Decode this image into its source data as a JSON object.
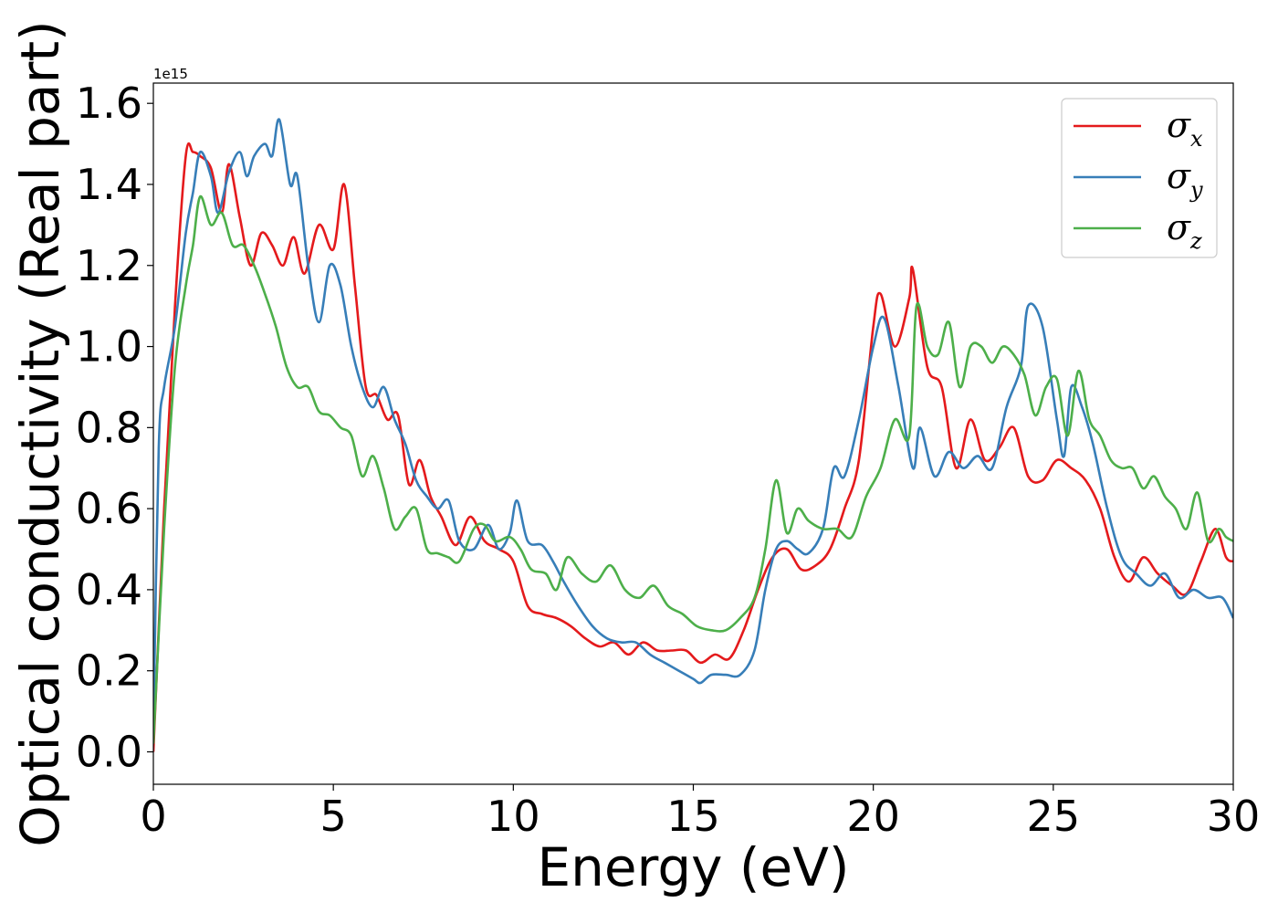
{
  "chart_data": {
    "type": "line",
    "xlabel": "Energy (eV)",
    "ylabel": "Optical conductivity (Real part)",
    "y_offset_text": "1e15",
    "xlim": [
      0,
      30
    ],
    "ylim": [
      -0.08,
      1.65
    ],
    "xticks": [
      0,
      5,
      10,
      15,
      20,
      25,
      30
    ],
    "yticks": [
      0.0,
      0.2,
      0.4,
      0.6,
      0.8,
      1.0,
      1.2,
      1.4,
      1.6
    ],
    "ytick_labels": [
      "0.0",
      "0.2",
      "0.4",
      "0.6",
      "0.8",
      "1.0",
      "1.2",
      "1.4",
      "1.6"
    ],
    "grid": false,
    "legend_position": "top-right",
    "series": [
      {
        "name": "σx",
        "sub": "x",
        "color": "#e41a1c",
        "x": [
          0,
          0.3,
          0.6,
          0.9,
          1.1,
          1.3,
          1.6,
          1.9,
          2.1,
          2.4,
          2.7,
          3.0,
          3.3,
          3.6,
          3.9,
          4.2,
          4.6,
          5.0,
          5.3,
          5.6,
          5.9,
          6.2,
          6.5,
          6.8,
          7.1,
          7.4,
          7.7,
          8.0,
          8.4,
          8.8,
          9.2,
          9.6,
          10.0,
          10.4,
          10.8,
          11.2,
          11.6,
          12.0,
          12.4,
          12.8,
          13.2,
          13.6,
          14.0,
          14.4,
          14.8,
          15.2,
          15.6,
          16.0,
          16.4,
          16.8,
          17.2,
          17.6,
          18.0,
          18.4,
          18.8,
          19.2,
          19.6,
          20.0,
          20.2,
          20.6,
          21.0,
          21.1,
          21.5,
          21.9,
          22.3,
          22.7,
          23.1,
          23.5,
          23.9,
          24.3,
          24.7,
          25.1,
          25.5,
          25.9,
          26.3,
          26.7,
          27.1,
          27.5,
          27.9,
          28.3,
          28.7,
          29.1,
          29.5,
          29.8,
          30.0
        ],
        "y": [
          0.0,
          0.6,
          1.1,
          1.47,
          1.48,
          1.47,
          1.44,
          1.33,
          1.45,
          1.32,
          1.2,
          1.28,
          1.25,
          1.2,
          1.27,
          1.18,
          1.3,
          1.24,
          1.4,
          1.15,
          0.9,
          0.88,
          0.82,
          0.83,
          0.66,
          0.72,
          0.63,
          0.58,
          0.51,
          0.58,
          0.52,
          0.5,
          0.47,
          0.36,
          0.34,
          0.33,
          0.31,
          0.28,
          0.26,
          0.27,
          0.24,
          0.27,
          0.25,
          0.25,
          0.25,
          0.22,
          0.24,
          0.23,
          0.3,
          0.4,
          0.48,
          0.5,
          0.45,
          0.46,
          0.5,
          0.6,
          0.72,
          1.05,
          1.13,
          1.0,
          1.12,
          1.19,
          0.95,
          0.9,
          0.7,
          0.82,
          0.72,
          0.75,
          0.8,
          0.68,
          0.67,
          0.72,
          0.7,
          0.67,
          0.6,
          0.48,
          0.42,
          0.48,
          0.44,
          0.41,
          0.39,
          0.47,
          0.55,
          0.48,
          0.47
        ]
      },
      {
        "name": "σy",
        "sub": "y",
        "color": "#377eb8",
        "x": [
          0,
          0.15,
          0.3,
          0.6,
          0.9,
          1.1,
          1.3,
          1.6,
          1.8,
          2.1,
          2.4,
          2.6,
          2.8,
          3.1,
          3.3,
          3.5,
          3.8,
          4.0,
          4.3,
          4.6,
          4.9,
          5.2,
          5.5,
          5.8,
          6.1,
          6.4,
          6.7,
          7.0,
          7.3,
          7.6,
          7.9,
          8.2,
          8.5,
          8.9,
          9.3,
          9.6,
          9.9,
          10.1,
          10.4,
          10.8,
          11.1,
          11.4,
          11.8,
          12.2,
          12.6,
          13.0,
          13.4,
          13.8,
          14.2,
          14.6,
          15.0,
          15.2,
          15.5,
          15.9,
          16.3,
          16.7,
          17.0,
          17.3,
          17.6,
          17.9,
          18.2,
          18.6,
          18.9,
          19.2,
          19.6,
          20.0,
          20.3,
          20.7,
          21.1,
          21.3,
          21.7,
          22.1,
          22.5,
          22.9,
          23.3,
          23.7,
          24.1,
          24.3,
          24.7,
          25.1,
          25.3,
          25.5,
          25.8,
          26.1,
          26.5,
          26.9,
          27.3,
          27.7,
          28.1,
          28.5,
          28.9,
          29.3,
          29.7,
          30.0
        ],
        "y": [
          0.05,
          0.75,
          0.9,
          1.05,
          1.28,
          1.38,
          1.48,
          1.42,
          1.33,
          1.43,
          1.48,
          1.42,
          1.47,
          1.5,
          1.47,
          1.56,
          1.4,
          1.42,
          1.2,
          1.06,
          1.2,
          1.15,
          1.0,
          0.9,
          0.85,
          0.9,
          0.82,
          0.76,
          0.67,
          0.63,
          0.6,
          0.62,
          0.52,
          0.5,
          0.56,
          0.5,
          0.54,
          0.62,
          0.52,
          0.51,
          0.47,
          0.42,
          0.36,
          0.31,
          0.28,
          0.27,
          0.27,
          0.24,
          0.22,
          0.2,
          0.18,
          0.17,
          0.19,
          0.19,
          0.19,
          0.25,
          0.4,
          0.5,
          0.52,
          0.5,
          0.49,
          0.55,
          0.7,
          0.68,
          0.82,
          1.0,
          1.07,
          0.9,
          0.7,
          0.8,
          0.68,
          0.74,
          0.7,
          0.73,
          0.7,
          0.85,
          0.95,
          1.1,
          1.05,
          0.82,
          0.73,
          0.9,
          0.85,
          0.76,
          0.6,
          0.48,
          0.44,
          0.41,
          0.44,
          0.38,
          0.4,
          0.38,
          0.38,
          0.33
        ]
      },
      {
        "name": "σz",
        "sub": "z",
        "color": "#4daf4a",
        "x": [
          0,
          0.3,
          0.6,
          0.9,
          1.1,
          1.3,
          1.6,
          1.9,
          2.2,
          2.5,
          2.8,
          3.1,
          3.4,
          3.7,
          4.0,
          4.3,
          4.6,
          4.9,
          5.2,
          5.5,
          5.8,
          6.1,
          6.4,
          6.7,
          7.0,
          7.3,
          7.6,
          7.9,
          8.2,
          8.5,
          8.9,
          9.2,
          9.5,
          9.9,
          10.2,
          10.5,
          10.9,
          11.2,
          11.5,
          11.9,
          12.3,
          12.7,
          13.1,
          13.5,
          13.9,
          14.3,
          14.7,
          15.1,
          15.5,
          15.9,
          16.3,
          16.7,
          17.0,
          17.3,
          17.6,
          17.9,
          18.2,
          18.6,
          19.0,
          19.4,
          19.8,
          20.2,
          20.6,
          21.0,
          21.2,
          21.5,
          21.8,
          22.1,
          22.4,
          22.7,
          23.0,
          23.3,
          23.6,
          23.9,
          24.2,
          24.5,
          24.8,
          25.1,
          25.4,
          25.7,
          26.0,
          26.3,
          26.6,
          26.9,
          27.2,
          27.5,
          27.8,
          28.1,
          28.4,
          28.7,
          29.0,
          29.3,
          29.6,
          29.8,
          30.0
        ],
        "y": [
          0.02,
          0.55,
          0.95,
          1.15,
          1.25,
          1.37,
          1.3,
          1.33,
          1.25,
          1.25,
          1.2,
          1.13,
          1.05,
          0.95,
          0.9,
          0.9,
          0.84,
          0.83,
          0.8,
          0.78,
          0.68,
          0.73,
          0.65,
          0.55,
          0.58,
          0.6,
          0.5,
          0.49,
          0.48,
          0.47,
          0.55,
          0.56,
          0.52,
          0.53,
          0.5,
          0.45,
          0.44,
          0.4,
          0.48,
          0.44,
          0.42,
          0.46,
          0.4,
          0.38,
          0.41,
          0.36,
          0.34,
          0.31,
          0.3,
          0.3,
          0.33,
          0.38,
          0.5,
          0.67,
          0.54,
          0.6,
          0.57,
          0.55,
          0.55,
          0.53,
          0.63,
          0.7,
          0.82,
          0.78,
          1.1,
          1.0,
          0.98,
          1.06,
          0.9,
          1.0,
          1.0,
          0.96,
          1.0,
          0.98,
          0.93,
          0.83,
          0.9,
          0.92,
          0.78,
          0.94,
          0.82,
          0.78,
          0.72,
          0.7,
          0.7,
          0.65,
          0.68,
          0.63,
          0.6,
          0.55,
          0.64,
          0.52,
          0.55,
          0.53,
          0.52
        ]
      }
    ]
  }
}
